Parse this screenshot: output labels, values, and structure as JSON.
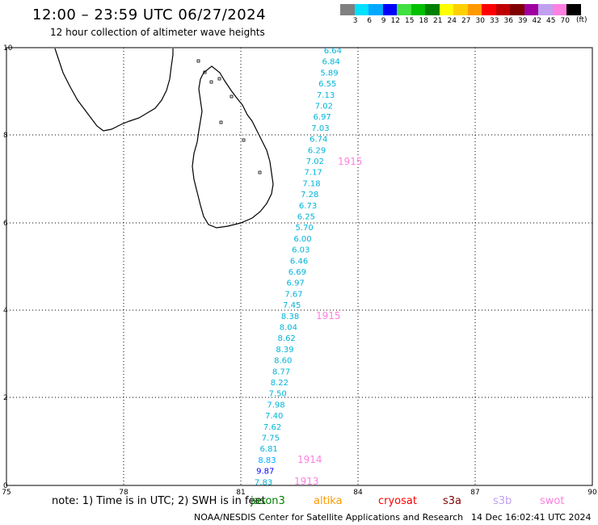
{
  "title": "12:00 – 23:59 UTC 06/27/2024",
  "subtitle": "12 hour collection of altimeter wave heights",
  "scale": {
    "colors": [
      "#808080",
      "#00e0ff",
      "#00a8ff",
      "#0000ff",
      "#40e040",
      "#00c000",
      "#008000",
      "#ffff00",
      "#ffd000",
      "#ff9900",
      "#ff0000",
      "#c00000",
      "#800000",
      "#a000a0",
      "#c0a0f0",
      "#ff80e0",
      "#000000"
    ],
    "labels": [
      "3",
      "6",
      "9",
      "12",
      "15",
      "18",
      "21",
      "24",
      "27",
      "30",
      "33",
      "36",
      "39",
      "42",
      "45",
      "70"
    ],
    "unit": "(ft)"
  },
  "axes": {
    "x_ticks": [
      "75",
      "78",
      "81",
      "84",
      "87",
      "90"
    ],
    "y_ticks": [
      "0",
      "2",
      "4",
      "6",
      "8",
      "10"
    ]
  },
  "passes": {
    "cyan": [
      "6.64",
      "6.84",
      "5.89",
      "6.55",
      "7.13",
      "7.02",
      "6.97",
      "7.03",
      "6.74",
      "6.29",
      "7.02",
      "7.17",
      "7.18",
      "7.28",
      "6.73",
      "6.25",
      "5.70",
      "6.00",
      "6.03",
      "6.46",
      "6.69",
      "6.97",
      "7.67",
      "7.45",
      "8.38",
      "8.04",
      "8.62",
      "8.39",
      "8.60",
      "8.77",
      "8.22",
      "7.50",
      "7.98",
      "7.40",
      "7.62",
      "7.75",
      "6.81",
      "8.83",
      "9.87",
      "7.83"
    ],
    "times": [
      "1915",
      "1915",
      "1914",
      "1913"
    ]
  },
  "note": "note:  1) Time is in UTC; 2) SWH is in feet",
  "satellites": [
    "jason3",
    "altika",
    "cryosat",
    "s3a",
    "s3b",
    "swot"
  ],
  "sat_colors": [
    "#008000",
    "#ff9900",
    "#ff0000",
    "#800000",
    "#c0a0f0",
    "#ff80e0"
  ],
  "footer": "NOAA/NESDIS Center for Satellite Applications and Research",
  "footer_time": "14 Dec 16:02:41 UTC 2024"
}
